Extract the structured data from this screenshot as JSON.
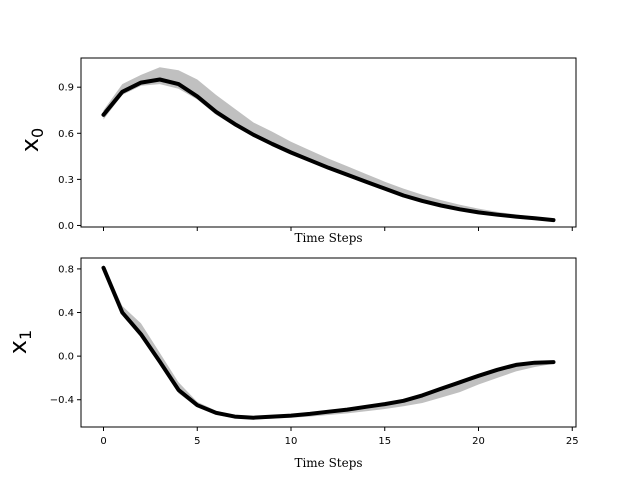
{
  "chart_data": [
    {
      "type": "line",
      "title": "",
      "xlabel": "Time Steps",
      "ylabel": "x",
      "ylabel_subscript": "0",
      "xlim": [
        -1.2,
        25.2
      ],
      "ylim": [
        -0.01,
        1.09
      ],
      "xticks": [
        0,
        5,
        10,
        15,
        20,
        25
      ],
      "xtick_labels_visible": false,
      "yticks": [
        0.0,
        0.3,
        0.6,
        0.9
      ],
      "ytick_labels": [
        "0.0",
        "0.3",
        "0.6",
        "0.9"
      ],
      "grid": false,
      "x": [
        0,
        1,
        2,
        3,
        4,
        5,
        6,
        7,
        8,
        9,
        10,
        11,
        12,
        13,
        14,
        15,
        16,
        17,
        18,
        19,
        20,
        21,
        22,
        23,
        24
      ],
      "series": [
        {
          "color": "#000000",
          "values": [
            0.72,
            0.87,
            0.93,
            0.95,
            0.92,
            0.84,
            0.74,
            0.66,
            0.59,
            0.53,
            0.475,
            0.425,
            0.375,
            0.33,
            0.285,
            0.24,
            0.195,
            0.16,
            0.13,
            0.105,
            0.085,
            0.07,
            0.058,
            0.047,
            0.035
          ]
        }
      ],
      "band": {
        "color": "#c0c0c0",
        "upper": [
          0.75,
          0.92,
          0.98,
          1.03,
          1.01,
          0.95,
          0.85,
          0.76,
          0.67,
          0.61,
          0.545,
          0.49,
          0.435,
          0.385,
          0.335,
          0.285,
          0.24,
          0.2,
          0.165,
          0.135,
          0.11,
          0.088,
          0.072,
          0.056,
          0.04
        ],
        "lower": [
          0.69,
          0.85,
          0.91,
          0.92,
          0.89,
          0.82,
          0.72,
          0.645,
          0.58,
          0.52,
          0.465,
          0.415,
          0.365,
          0.32,
          0.275,
          0.23,
          0.19,
          0.155,
          0.125,
          0.1,
          0.08,
          0.066,
          0.054,
          0.043,
          0.031
        ]
      }
    },
    {
      "type": "line",
      "title": "",
      "xlabel": "Time Steps",
      "ylabel": "x",
      "ylabel_subscript": "1",
      "xlim": [
        -1.2,
        25.2
      ],
      "ylim": [
        -0.65,
        0.9
      ],
      "xticks": [
        0,
        5,
        10,
        15,
        20,
        25
      ],
      "xtick_labels": [
        "0",
        "5",
        "10",
        "15",
        "20",
        "25"
      ],
      "yticks": [
        -0.4,
        0.0,
        0.4,
        0.8
      ],
      "ytick_labels": [
        "−0.4",
        "0.0",
        "0.4",
        "0.8"
      ],
      "grid": false,
      "x": [
        0,
        1,
        2,
        3,
        4,
        5,
        6,
        7,
        8,
        9,
        10,
        11,
        12,
        13,
        14,
        15,
        16,
        17,
        18,
        19,
        20,
        21,
        22,
        23,
        24
      ],
      "series": [
        {
          "color": "#000000",
          "values": [
            0.81,
            0.4,
            0.2,
            -0.05,
            -0.31,
            -0.45,
            -0.52,
            -0.555,
            -0.565,
            -0.555,
            -0.545,
            -0.53,
            -0.51,
            -0.49,
            -0.465,
            -0.44,
            -0.41,
            -0.36,
            -0.3,
            -0.24,
            -0.18,
            -0.125,
            -0.08,
            -0.06,
            -0.055
          ]
        }
      ],
      "band": {
        "color": "#c0c0c0",
        "upper": [
          0.84,
          0.46,
          0.3,
          0.03,
          -0.24,
          -0.42,
          -0.5,
          -0.545,
          -0.555,
          -0.548,
          -0.538,
          -0.522,
          -0.502,
          -0.482,
          -0.458,
          -0.432,
          -0.4,
          -0.35,
          -0.29,
          -0.23,
          -0.17,
          -0.115,
          -0.075,
          -0.055,
          -0.05
        ],
        "lower": [
          0.78,
          0.38,
          0.18,
          -0.08,
          -0.34,
          -0.47,
          -0.54,
          -0.57,
          -0.58,
          -0.575,
          -0.565,
          -0.555,
          -0.54,
          -0.525,
          -0.505,
          -0.485,
          -0.46,
          -0.43,
          -0.38,
          -0.33,
          -0.26,
          -0.2,
          -0.14,
          -0.1,
          -0.07
        ]
      }
    }
  ]
}
